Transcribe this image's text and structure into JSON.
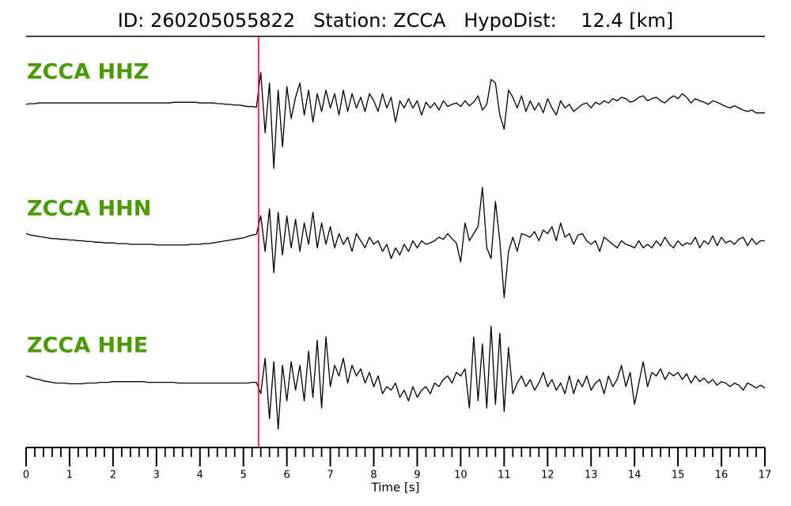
{
  "chart_data": {
    "type": "line",
    "title": "ID: 260205055822   Station: ZCCA   HypoDist:    12.4 [km]",
    "xlabel": "Time [s]",
    "xlim": [
      0,
      17
    ],
    "xticks": [
      0,
      1,
      2,
      3,
      4,
      5,
      6,
      7,
      8,
      9,
      10,
      11,
      12,
      13,
      14,
      15,
      16,
      17
    ],
    "xminorticks": [
      0.2,
      0.4,
      0.6,
      0.8,
      1.2,
      1.4,
      1.6,
      1.8,
      2.2,
      2.4,
      2.6,
      2.8,
      3.2,
      3.4,
      3.6,
      3.8,
      4.2,
      4.4,
      4.6,
      4.8,
      5.2,
      5.4,
      5.6,
      5.8,
      6.2,
      6.4,
      6.6,
      6.8,
      7.2,
      7.4,
      7.6,
      7.8,
      8.2,
      8.4,
      8.6,
      8.8,
      9.2,
      9.4,
      9.6,
      9.8,
      10.2,
      10.4,
      10.6,
      10.8,
      11.2,
      11.4,
      11.6,
      11.8,
      12.2,
      12.4,
      12.6,
      12.8,
      13.2,
      13.4,
      13.6,
      13.8,
      14.2,
      14.4,
      14.6,
      14.8,
      15.2,
      15.4,
      15.6,
      15.8,
      16.2,
      16.4,
      16.6,
      16.8
    ],
    "pick_time": 5.35,
    "pick_color": "#e8000b",
    "label_color": "#4a9a00",
    "ylim": [
      -100,
      100
    ],
    "x": [
      0,
      0.1,
      0.2,
      0.3,
      0.4,
      0.5,
      0.6,
      0.7,
      0.8,
      0.9,
      1,
      1.1,
      1.2,
      1.3,
      1.4,
      1.5,
      1.6,
      1.7,
      1.8,
      1.9,
      2,
      2.1,
      2.2,
      2.3,
      2.4,
      2.5,
      2.6,
      2.7,
      2.8,
      2.9,
      3,
      3.1,
      3.2,
      3.3,
      3.4,
      3.5,
      3.6,
      3.7,
      3.8,
      3.9,
      4,
      4.1,
      4.2,
      4.3,
      4.4,
      4.5,
      4.6,
      4.7,
      4.8,
      4.9,
      5,
      5.1,
      5.2,
      5.3,
      5.4,
      5.5,
      5.6,
      5.7,
      5.8,
      5.9,
      6,
      6.1,
      6.2,
      6.3,
      6.4,
      6.5,
      6.6,
      6.7,
      6.8,
      6.9,
      7,
      7.1,
      7.2,
      7.3,
      7.4,
      7.5,
      7.6,
      7.7,
      7.8,
      7.9,
      8,
      8.1,
      8.2,
      8.3,
      8.4,
      8.5,
      8.6,
      8.7,
      8.8,
      8.9,
      9,
      9.1,
      9.2,
      9.3,
      9.4,
      9.5,
      9.6,
      9.7,
      9.8,
      9.9,
      10,
      10.1,
      10.2,
      10.3,
      10.4,
      10.5,
      10.6,
      10.7,
      10.8,
      10.9,
      11,
      11.1,
      11.2,
      11.3,
      11.4,
      11.5,
      11.6,
      11.7,
      11.8,
      11.9,
      12,
      12.1,
      12.2,
      12.3,
      12.4,
      12.5,
      12.6,
      12.7,
      12.8,
      12.9,
      13,
      13.1,
      13.2,
      13.3,
      13.4,
      13.5,
      13.6,
      13.7,
      13.8,
      13.9,
      14,
      14.1,
      14.2,
      14.3,
      14.4,
      14.5,
      14.6,
      14.7,
      14.8,
      14.9,
      15,
      15.1,
      15.2,
      15.3,
      15.4,
      15.5,
      15.6,
      15.7,
      15.8,
      15.9,
      16,
      16.1,
      16.2,
      16.3,
      16.4,
      16.5,
      16.6,
      16.7,
      16.8,
      16.9,
      17
    ],
    "series": [
      {
        "name": "ZCCA HHZ",
        "color": "#000000",
        "values": [
          0,
          1,
          1,
          2,
          2,
          2,
          2,
          2,
          2,
          2,
          2,
          2,
          2,
          2,
          2,
          2,
          2,
          2,
          2,
          2,
          2,
          2,
          2,
          2,
          2,
          2,
          2,
          2,
          2,
          2,
          2,
          2,
          2,
          2,
          3,
          3,
          3,
          3,
          3,
          3,
          2,
          2,
          2,
          2,
          1,
          1,
          0,
          0,
          -1,
          -1,
          -2,
          -3,
          -3,
          -4,
          45,
          -40,
          30,
          -90,
          20,
          -60,
          25,
          -20,
          10,
          30,
          -15,
          20,
          -25,
          15,
          -10,
          20,
          -5,
          15,
          -15,
          20,
          -10,
          15,
          -5,
          10,
          -10,
          15,
          5,
          -10,
          15,
          -5,
          10,
          -25,
          5,
          -5,
          8,
          -5,
          5,
          -15,
          3,
          -5,
          2,
          -8,
          5,
          -3,
          0,
          2,
          -3,
          5,
          -2,
          3,
          12,
          -8,
          0,
          35,
          30,
          -15,
          -35,
          20,
          10,
          -5,
          12,
          -10,
          5,
          -8,
          2,
          -12,
          8,
          -5,
          -15,
          5,
          -5,
          0,
          -10,
          -5,
          0,
          2,
          -5,
          3,
          0,
          5,
          2,
          8,
          5,
          10,
          8,
          3,
          5,
          10,
          12,
          5,
          8,
          10,
          5,
          2,
          8,
          12,
          8,
          15,
          10,
          2,
          8,
          5,
          3,
          0,
          5,
          3,
          0,
          -3,
          -5,
          -2,
          -5,
          -8,
          -10,
          -8,
          -12,
          -12,
          -12
        ]
      },
      {
        "name": "ZCCA HHN",
        "color": "#000000",
        "values": [
          5,
          3,
          2,
          1,
          0,
          -1,
          -2,
          -2,
          -3,
          -3,
          -4,
          -4,
          -5,
          -5,
          -6,
          -6,
          -7,
          -7,
          -8,
          -8,
          -8,
          -9,
          -9,
          -9,
          -10,
          -10,
          -10,
          -10,
          -10,
          -10,
          -11,
          -11,
          -11,
          -11,
          -11,
          -11,
          -11,
          -11,
          -10,
          -10,
          -10,
          -9,
          -9,
          -8,
          -7,
          -6,
          -5,
          -4,
          -3,
          -2,
          -1,
          1,
          3,
          4,
          30,
          -20,
          40,
          -50,
          35,
          -25,
          30,
          -15,
          25,
          -20,
          20,
          -10,
          35,
          -15,
          20,
          -10,
          15,
          -15,
          5,
          -10,
          0,
          -20,
          5,
          -5,
          -15,
          0,
          -10,
          -5,
          -20,
          -10,
          -30,
          -15,
          -25,
          -10,
          -20,
          -5,
          -15,
          -5,
          -10,
          -8,
          -5,
          0,
          -3,
          5,
          -2,
          -8,
          -35,
          20,
          -5,
          5,
          15,
          70,
          -15,
          -30,
          50,
          -5,
          -85,
          -20,
          0,
          -20,
          5,
          3,
          0,
          8,
          -5,
          10,
          5,
          15,
          -5,
          20,
          0,
          5,
          -10,
          3,
          5,
          -5,
          -10,
          -5,
          -20,
          0,
          -5,
          -10,
          -15,
          -5,
          -10,
          -12,
          -15,
          -5,
          -15,
          -10,
          -15,
          -5,
          -12,
          0,
          -10,
          -15,
          -5,
          -12,
          -8,
          -10,
          0,
          -15,
          -5,
          -10,
          2,
          -12,
          0,
          -8,
          -5,
          -10,
          -3,
          0,
          -12,
          -2,
          -10,
          -5,
          -5
        ]
      },
      {
        "name": "ZCCA HHE",
        "color": "#000000",
        "values": [
          5,
          3,
          1,
          0,
          -2,
          -3,
          -4,
          -5,
          -5,
          -5,
          -6,
          -6,
          -6,
          -6,
          -5,
          -5,
          -5,
          -4,
          -4,
          -4,
          -3,
          -3,
          -3,
          -3,
          -3,
          -3,
          -3,
          -3,
          -4,
          -4,
          -4,
          -4,
          -4,
          -4,
          -4,
          -5,
          -5,
          -5,
          -5,
          -5,
          -5,
          -5,
          -5,
          -5,
          -5,
          -5,
          -5,
          -5,
          -5,
          -5,
          -5,
          -5,
          -4,
          -4,
          -20,
          30,
          -55,
          25,
          -70,
          20,
          -30,
          25,
          -15,
          20,
          -30,
          40,
          -25,
          55,
          -40,
          60,
          -10,
          20,
          5,
          30,
          -5,
          20,
          5,
          15,
          -5,
          10,
          -10,
          5,
          -20,
          -10,
          -15,
          -5,
          -25,
          -15,
          -30,
          -10,
          -25,
          -15,
          -10,
          -20,
          -5,
          -10,
          0,
          5,
          -5,
          10,
          5,
          15,
          -40,
          60,
          -30,
          50,
          -40,
          75,
          -35,
          65,
          -45,
          45,
          -20,
          -5,
          5,
          -10,
          0,
          -15,
          -5,
          10,
          -10,
          0,
          -15,
          -5,
          -20,
          5,
          -20,
          0,
          -10,
          5,
          -15,
          -5,
          0,
          -20,
          5,
          -10,
          0,
          20,
          -10,
          10,
          -35,
          -5,
          25,
          -10,
          10,
          5,
          15,
          0,
          10,
          5,
          10,
          0,
          8,
          -5,
          5,
          -3,
          2,
          -5,
          0,
          -8,
          -3,
          -5,
          -10,
          -5,
          -8,
          -15,
          -5,
          -8,
          -12,
          -8,
          -12
        ]
      }
    ]
  }
}
